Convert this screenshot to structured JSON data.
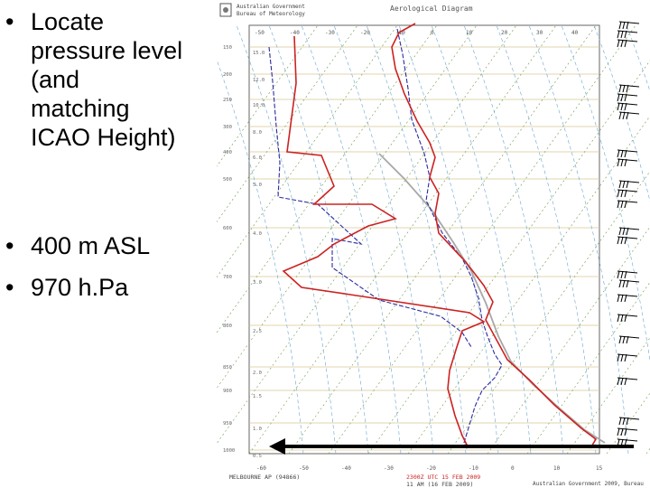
{
  "bullets": [
    {
      "text": "Locate\npressure level\n(and\nmatching\nICAO Height)"
    },
    {
      "text": "400 m ASL"
    },
    {
      "text": "970 h.Pa"
    }
  ],
  "diagram": {
    "header_org_line1": "Australian Government",
    "header_org_line2": "Bureau of Meteorology",
    "header_title": "Aerological Diagram",
    "top_temp_labels": [
      "-50",
      "-40",
      "-30",
      "-20",
      "-10",
      "0",
      "10",
      "20",
      "30",
      "40"
    ],
    "bottom_temp_labels": [
      "-60",
      "-50",
      "-40",
      "-30",
      "-20",
      "-10",
      "0",
      "10",
      "15"
    ],
    "pressure_labels": [
      "150",
      "200",
      "250",
      "300",
      "400",
      "500",
      "600",
      "700",
      "800",
      "850",
      "900",
      "950",
      "1000"
    ],
    "height_labels": [
      "15.0",
      "12.0",
      "10.0",
      "8.0",
      "6.0",
      "5.0",
      "4.0",
      "3.0",
      "2.5",
      "2.0",
      "1.5",
      "1.0",
      "0.5"
    ],
    "station": "MELBOURNE AP (94866)",
    "valid_time": "2300Z UTC 15 FEB 2009",
    "local_time": "11 AM (16 FEB 2009)",
    "copyright": "Australian Government 2009, Bureau"
  },
  "colors": {
    "temperature_trace": "#cc2222",
    "dewpoint_trace": "#2a2aa0",
    "parcel_trace": "#a8a8a8",
    "isotherm": "#6a9a4a",
    "dry_adiabat": "#6aa6d0",
    "isobar": "#d8c890",
    "arrow": "#000000"
  }
}
